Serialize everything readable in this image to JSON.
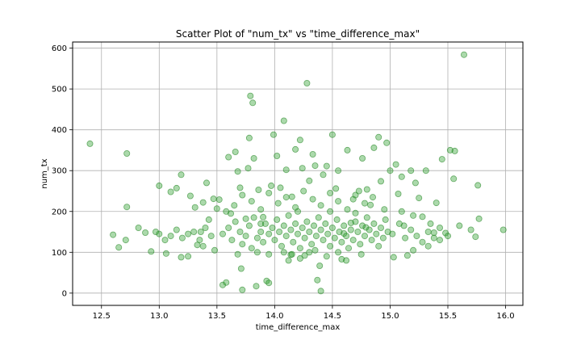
{
  "chart_data": {
    "type": "scatter",
    "title": "Scatter Plot of \"num_tx\" vs \"time_difference_max\"",
    "xlabel": "time_difference_max",
    "ylabel": "num_tx",
    "xlim": [
      12.25,
      16.15
    ],
    "ylim": [
      -30,
      615
    ],
    "xticks": [
      12.5,
      13.0,
      13.5,
      14.0,
      14.5,
      15.0,
      15.5,
      16.0
    ],
    "xtick_labels": [
      "12.5",
      "13.0",
      "13.5",
      "14.0",
      "14.5",
      "15.0",
      "15.5",
      "16.0"
    ],
    "yticks": [
      0,
      100,
      200,
      300,
      400,
      500,
      600
    ],
    "ytick_labels": [
      "0",
      "100",
      "200",
      "300",
      "400",
      "500",
      "600"
    ],
    "grid": true,
    "marker_color": "#2ca02c",
    "marker_edge": "#1a7f1a",
    "marker_alpha": 0.4,
    "points": [
      [
        12.4,
        366
      ],
      [
        12.72,
        342
      ],
      [
        12.72,
        211
      ],
      [
        12.6,
        143
      ],
      [
        12.65,
        112
      ],
      [
        12.71,
        130
      ],
      [
        12.82,
        160
      ],
      [
        12.88,
        148
      ],
      [
        12.93,
        102
      ],
      [
        12.97,
        150
      ],
      [
        13.0,
        263
      ],
      [
        13.06,
        97
      ],
      [
        13.1,
        248
      ],
      [
        13.15,
        257
      ],
      [
        13.19,
        290
      ],
      [
        13.19,
        88
      ],
      [
        13.25,
        90
      ],
      [
        13.27,
        238
      ],
      [
        13.31,
        210
      ],
      [
        13.33,
        118
      ],
      [
        13.36,
        150
      ],
      [
        13.38,
        222
      ],
      [
        13.41,
        270
      ],
      [
        13.43,
        180
      ],
      [
        13.47,
        231
      ],
      [
        13.5,
        207
      ],
      [
        13.52,
        229
      ],
      [
        13.55,
        20
      ],
      [
        13.58,
        26
      ],
      [
        13.6,
        333
      ],
      [
        13.62,
        195
      ],
      [
        13.66,
        346
      ],
      [
        13.68,
        298
      ],
      [
        13.7,
        258
      ],
      [
        13.71,
        60
      ],
      [
        13.72,
        8
      ],
      [
        13.75,
        182
      ],
      [
        13.77,
        306
      ],
      [
        13.78,
        380
      ],
      [
        13.79,
        483
      ],
      [
        13.81,
        466
      ],
      [
        13.82,
        330
      ],
      [
        13.84,
        17
      ],
      [
        13.86,
        253
      ],
      [
        13.88,
        170
      ],
      [
        13.9,
        186
      ],
      [
        13.93,
        30
      ],
      [
        13.95,
        25
      ],
      [
        13.97,
        263
      ],
      [
        13.99,
        388
      ],
      [
        14.02,
        336
      ],
      [
        14.05,
        258
      ],
      [
        14.08,
        422
      ],
      [
        14.1,
        302
      ],
      [
        14.12,
        80
      ],
      [
        14.14,
        94
      ],
      [
        14.15,
        236
      ],
      [
        14.18,
        352
      ],
      [
        14.2,
        200
      ],
      [
        14.22,
        375
      ],
      [
        14.24,
        306
      ],
      [
        14.26,
        92
      ],
      [
        14.28,
        514
      ],
      [
        14.3,
        275
      ],
      [
        14.33,
        340
      ],
      [
        14.35,
        312
      ],
      [
        14.37,
        32
      ],
      [
        14.39,
        67
      ],
      [
        14.4,
        5
      ],
      [
        14.42,
        290
      ],
      [
        14.45,
        311
      ],
      [
        14.48,
        200
      ],
      [
        14.5,
        388
      ],
      [
        14.53,
        256
      ],
      [
        14.55,
        300
      ],
      [
        14.58,
        83
      ],
      [
        14.6,
        146
      ],
      [
        14.63,
        350
      ],
      [
        14.66,
        172
      ],
      [
        14.68,
        230
      ],
      [
        14.7,
        196
      ],
      [
        14.73,
        250
      ],
      [
        14.76,
        330
      ],
      [
        14.79,
        161
      ],
      [
        14.8,
        254
      ],
      [
        14.83,
        216
      ],
      [
        14.86,
        356
      ],
      [
        14.9,
        382
      ],
      [
        14.92,
        274
      ],
      [
        14.95,
        205
      ],
      [
        14.97,
        368
      ],
      [
        15.0,
        300
      ],
      [
        15.03,
        88
      ],
      [
        15.05,
        315
      ],
      [
        15.07,
        243
      ],
      [
        15.1,
        285
      ],
      [
        15.12,
        165
      ],
      [
        15.15,
        92
      ],
      [
        15.18,
        300
      ],
      [
        15.2,
        105
      ],
      [
        15.22,
        270
      ],
      [
        15.25,
        233
      ],
      [
        15.28,
        187
      ],
      [
        15.31,
        300
      ],
      [
        15.33,
        115
      ],
      [
        15.35,
        170
      ],
      [
        15.38,
        148
      ],
      [
        15.4,
        221
      ],
      [
        15.43,
        130
      ],
      [
        15.45,
        328
      ],
      [
        15.48,
        147
      ],
      [
        15.52,
        350
      ],
      [
        15.55,
        280
      ],
      [
        15.56,
        348
      ],
      [
        15.6,
        165
      ],
      [
        15.64,
        584
      ],
      [
        15.7,
        155
      ],
      [
        15.74,
        138
      ],
      [
        15.76,
        264
      ],
      [
        15.77,
        182
      ],
      [
        15.98,
        155
      ],
      [
        13.55,
        145
      ],
      [
        13.6,
        160
      ],
      [
        13.63,
        130
      ],
      [
        13.66,
        175
      ],
      [
        13.7,
        150
      ],
      [
        13.72,
        120
      ],
      [
        13.75,
        140
      ],
      [
        13.78,
        165
      ],
      [
        13.8,
        110
      ],
      [
        13.82,
        185
      ],
      [
        13.85,
        135
      ],
      [
        13.88,
        150
      ],
      [
        13.9,
        125
      ],
      [
        13.92,
        170
      ],
      [
        13.95,
        145
      ],
      [
        13.98,
        160
      ],
      [
        14.0,
        130
      ],
      [
        14.02,
        180
      ],
      [
        14.04,
        150
      ],
      [
        14.06,
        115
      ],
      [
        14.08,
        165
      ],
      [
        14.1,
        140
      ],
      [
        14.12,
        190
      ],
      [
        14.14,
        155
      ],
      [
        14.16,
        125
      ],
      [
        14.18,
        170
      ],
      [
        14.2,
        145
      ],
      [
        14.22,
        110
      ],
      [
        14.24,
        160
      ],
      [
        14.26,
        135
      ],
      [
        14.28,
        175
      ],
      [
        14.3,
        150
      ],
      [
        14.32,
        120
      ],
      [
        14.34,
        165
      ],
      [
        14.36,
        140
      ],
      [
        14.38,
        185
      ],
      [
        14.4,
        155
      ],
      [
        14.42,
        130
      ],
      [
        14.44,
        170
      ],
      [
        14.46,
        145
      ],
      [
        14.48,
        115
      ],
      [
        14.5,
        160
      ],
      [
        14.52,
        135
      ],
      [
        14.54,
        180
      ],
      [
        14.56,
        150
      ],
      [
        14.58,
        125
      ],
      [
        14.6,
        165
      ],
      [
        14.62,
        140
      ],
      [
        14.64,
        110
      ],
      [
        14.66,
        155
      ],
      [
        14.68,
        130
      ],
      [
        14.7,
        175
      ],
      [
        14.72,
        150
      ],
      [
        14.74,
        120
      ],
      [
        14.76,
        165
      ],
      [
        14.78,
        140
      ],
      [
        14.8,
        185
      ],
      [
        14.82,
        155
      ],
      [
        14.84,
        130
      ],
      [
        14.86,
        170
      ],
      [
        14.88,
        145
      ],
      [
        14.9,
        115
      ],
      [
        14.92,
        160
      ],
      [
        14.94,
        135
      ],
      [
        14.96,
        180
      ],
      [
        14.98,
        150
      ],
      [
        13.58,
        200
      ],
      [
        13.65,
        215
      ],
      [
        13.72,
        240
      ],
      [
        13.8,
        225
      ],
      [
        13.88,
        205
      ],
      [
        13.95,
        245
      ],
      [
        14.03,
        220
      ],
      [
        14.1,
        235
      ],
      [
        14.18,
        210
      ],
      [
        14.25,
        250
      ],
      [
        14.33,
        230
      ],
      [
        14.4,
        215
      ],
      [
        14.48,
        245
      ],
      [
        14.55,
        225
      ],
      [
        14.63,
        205
      ],
      [
        14.7,
        240
      ],
      [
        14.78,
        220
      ],
      [
        14.85,
        235
      ],
      [
        13.45,
        140
      ],
      [
        13.4,
        160
      ],
      [
        13.35,
        130
      ],
      [
        13.3,
        150
      ],
      [
        13.25,
        145
      ],
      [
        13.2,
        135
      ],
      [
        13.1,
        140
      ],
      [
        13.05,
        130
      ],
      [
        13.0,
        145
      ],
      [
        13.15,
        155
      ],
      [
        13.38,
        115
      ],
      [
        13.48,
        105
      ],
      [
        15.02,
        145
      ],
      [
        15.08,
        170
      ],
      [
        15.13,
        135
      ],
      [
        15.18,
        155
      ],
      [
        15.23,
        140
      ],
      [
        15.28,
        125
      ],
      [
        15.33,
        150
      ],
      [
        15.38,
        135
      ],
      [
        15.43,
        160
      ],
      [
        15.5,
        140
      ],
      [
        15.2,
        190
      ],
      [
        15.1,
        200
      ],
      [
        14.15,
        95
      ],
      [
        14.22,
        85
      ],
      [
        14.3,
        100
      ],
      [
        14.08,
        100
      ],
      [
        13.95,
        95
      ],
      [
        14.45,
        90
      ],
      [
        14.62,
        80
      ],
      [
        14.75,
        95
      ],
      [
        13.68,
        95
      ],
      [
        13.85,
        100
      ],
      [
        14.35,
        105
      ],
      [
        14.55,
        100
      ]
    ]
  }
}
